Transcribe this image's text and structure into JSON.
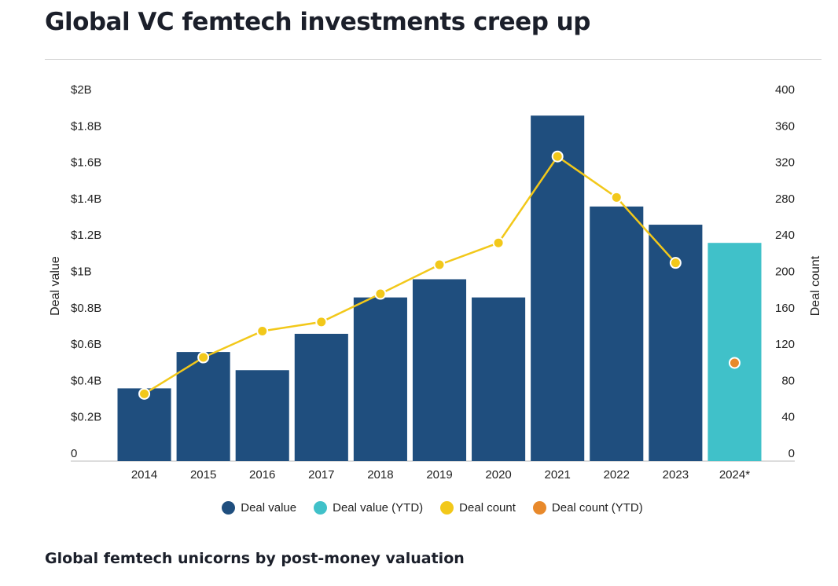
{
  "header": {
    "title": "Global VC femtech investments creep up"
  },
  "footer": {
    "subtitle": "Global femtech unicorns by post-money valuation"
  },
  "colors": {
    "deal_value": "#1f4e7e",
    "deal_value_ytd": "#40c1c9",
    "deal_count": "#f2c81a",
    "deal_count_ytd": "#e8892b",
    "axis": "#bbbbbb"
  },
  "chart_data": {
    "type": "bar",
    "title": "Global VC femtech investments creep up",
    "categories": [
      "2014",
      "2015",
      "2016",
      "2017",
      "2018",
      "2019",
      "2020",
      "2021",
      "2022",
      "2023",
      "2024*"
    ],
    "series": [
      {
        "name": "Deal value",
        "axis": "left",
        "unit": "$B",
        "values": [
          0.4,
          0.6,
          0.5,
          0.7,
          0.9,
          1.0,
          0.9,
          1.9,
          1.4,
          1.3,
          null
        ]
      },
      {
        "name": "Deal value (YTD)",
        "axis": "left",
        "unit": "$B",
        "values": [
          null,
          null,
          null,
          null,
          null,
          null,
          null,
          null,
          null,
          null,
          1.2
        ]
      },
      {
        "name": "Deal count",
        "axis": "right",
        "type": "line",
        "values": [
          74,
          114,
          143,
          153,
          184,
          216,
          240,
          335,
          290,
          218,
          null
        ]
      },
      {
        "name": "Deal count (YTD)",
        "axis": "right",
        "type": "scatter",
        "values": [
          null,
          null,
          null,
          null,
          null,
          null,
          null,
          null,
          null,
          null,
          108
        ]
      }
    ],
    "ylabel": "Deal value",
    "ylabel_right": "Deal count",
    "ylim": [
      0,
      2
    ],
    "ylim_right": [
      0,
      400
    ],
    "yticks": [
      "0",
      "$0.2B",
      "$0.4B",
      "$0.6B",
      "$0.8B",
      "$1B",
      "$1.2B",
      "$1.4B",
      "$1.6B",
      "$1.8B",
      "$2B"
    ],
    "yticks_right": [
      "0",
      "40",
      "80",
      "120",
      "160",
      "200",
      "240",
      "280",
      "320",
      "360",
      "400"
    ],
    "legend": {
      "position": "bottom",
      "entries": [
        "Deal value",
        "Deal value (YTD)",
        "Deal count",
        "Deal count (YTD)"
      ]
    },
    "grid": false
  }
}
